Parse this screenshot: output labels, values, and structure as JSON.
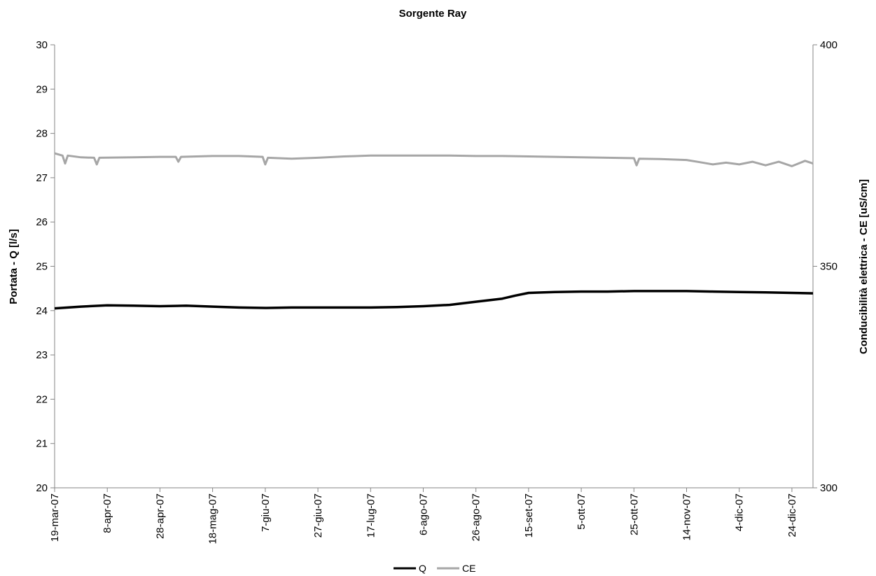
{
  "chart_data": {
    "type": "line",
    "title": "Sorgente Ray",
    "ylabel": "Portata - Q [l/s]",
    "y2label": "Conducibilità elettrica - CE [uS/cm]",
    "ylim": [
      20,
      30
    ],
    "y2lim": [
      300,
      400
    ],
    "xlim": [
      "2007-03-19",
      "2008-01-01"
    ],
    "yticks": [
      20,
      21,
      22,
      23,
      24,
      25,
      26,
      27,
      28,
      29,
      30
    ],
    "y2ticks": [
      300,
      350,
      400
    ],
    "x_ticks": [
      {
        "date": "2007-03-19",
        "label": "19-mar-07"
      },
      {
        "date": "2007-04-08",
        "label": "8-apr-07"
      },
      {
        "date": "2007-04-28",
        "label": "28-apr-07"
      },
      {
        "date": "2007-05-18",
        "label": "18-mag-07"
      },
      {
        "date": "2007-06-07",
        "label": "7-giu-07"
      },
      {
        "date": "2007-06-27",
        "label": "27-giu-07"
      },
      {
        "date": "2007-07-17",
        "label": "17-lug-07"
      },
      {
        "date": "2007-08-06",
        "label": "6-ago-07"
      },
      {
        "date": "2007-08-26",
        "label": "26-ago-07"
      },
      {
        "date": "2007-09-15",
        "label": "15-set-07"
      },
      {
        "date": "2007-10-05",
        "label": "5-ott-07"
      },
      {
        "date": "2007-10-25",
        "label": "25-ott-07"
      },
      {
        "date": "2007-11-14",
        "label": "14-nov-07"
      },
      {
        "date": "2007-12-04",
        "label": "4-dic-07"
      },
      {
        "date": "2007-12-24",
        "label": "24-dic-07"
      }
    ],
    "grid": false,
    "legend_position": "bottom",
    "series": [
      {
        "name": "Q",
        "axis": "left",
        "color": "#000000",
        "x": [
          "2007-03-19",
          "2007-03-29",
          "2007-04-08",
          "2007-04-18",
          "2007-04-28",
          "2007-05-08",
          "2007-05-18",
          "2007-05-28",
          "2007-06-07",
          "2007-06-17",
          "2007-06-27",
          "2007-07-07",
          "2007-07-17",
          "2007-07-27",
          "2007-08-06",
          "2007-08-16",
          "2007-08-26",
          "2007-09-05",
          "2007-09-10",
          "2007-09-15",
          "2007-09-25",
          "2007-10-05",
          "2007-10-15",
          "2007-10-25",
          "2007-11-04",
          "2007-11-14",
          "2007-11-24",
          "2007-12-04",
          "2007-12-14",
          "2007-12-24",
          "2008-01-01"
        ],
        "values": [
          24.05,
          24.09,
          24.12,
          24.11,
          24.1,
          24.11,
          24.09,
          24.07,
          24.06,
          24.07,
          24.07,
          24.07,
          24.07,
          24.08,
          24.1,
          24.13,
          24.2,
          24.27,
          24.34,
          24.4,
          24.42,
          24.43,
          24.43,
          24.44,
          24.44,
          24.44,
          24.43,
          24.42,
          24.41,
          24.4,
          24.39
        ]
      },
      {
        "name": "CE",
        "axis": "right",
        "color": "#a6a6a6",
        "x": [
          "2007-03-19",
          "2007-03-22",
          "2007-03-23",
          "2007-03-24",
          "2007-03-29",
          "2007-04-03",
          "2007-04-04",
          "2007-04-05",
          "2007-04-18",
          "2007-04-28",
          "2007-05-04",
          "2007-05-05",
          "2007-05-06",
          "2007-05-18",
          "2007-05-28",
          "2007-06-06",
          "2007-06-07",
          "2007-06-08",
          "2007-06-17",
          "2007-06-27",
          "2007-07-07",
          "2007-07-17",
          "2007-07-27",
          "2007-08-06",
          "2007-08-16",
          "2007-08-26",
          "2007-09-05",
          "2007-09-15",
          "2007-09-25",
          "2007-10-05",
          "2007-10-15",
          "2007-10-25",
          "2007-10-26",
          "2007-10-27",
          "2007-11-04",
          "2007-11-14",
          "2007-11-19",
          "2007-11-24",
          "2007-11-29",
          "2007-12-04",
          "2007-12-09",
          "2007-12-14",
          "2007-12-19",
          "2007-12-24",
          "2007-12-29",
          "2008-01-01"
        ],
        "values": [
          375.5,
          375.0,
          373.2,
          375.0,
          374.6,
          374.5,
          373.0,
          374.5,
          374.6,
          374.7,
          374.7,
          373.6,
          374.7,
          374.9,
          374.9,
          374.7,
          373.0,
          374.5,
          374.3,
          374.5,
          374.8,
          375.0,
          375.0,
          375.0,
          375.0,
          374.9,
          374.9,
          374.8,
          374.7,
          374.6,
          374.5,
          374.4,
          372.8,
          374.3,
          374.2,
          374.0,
          373.5,
          373.0,
          373.4,
          373.0,
          373.6,
          372.8,
          373.6,
          372.6,
          373.8,
          373.2
        ]
      }
    ]
  }
}
